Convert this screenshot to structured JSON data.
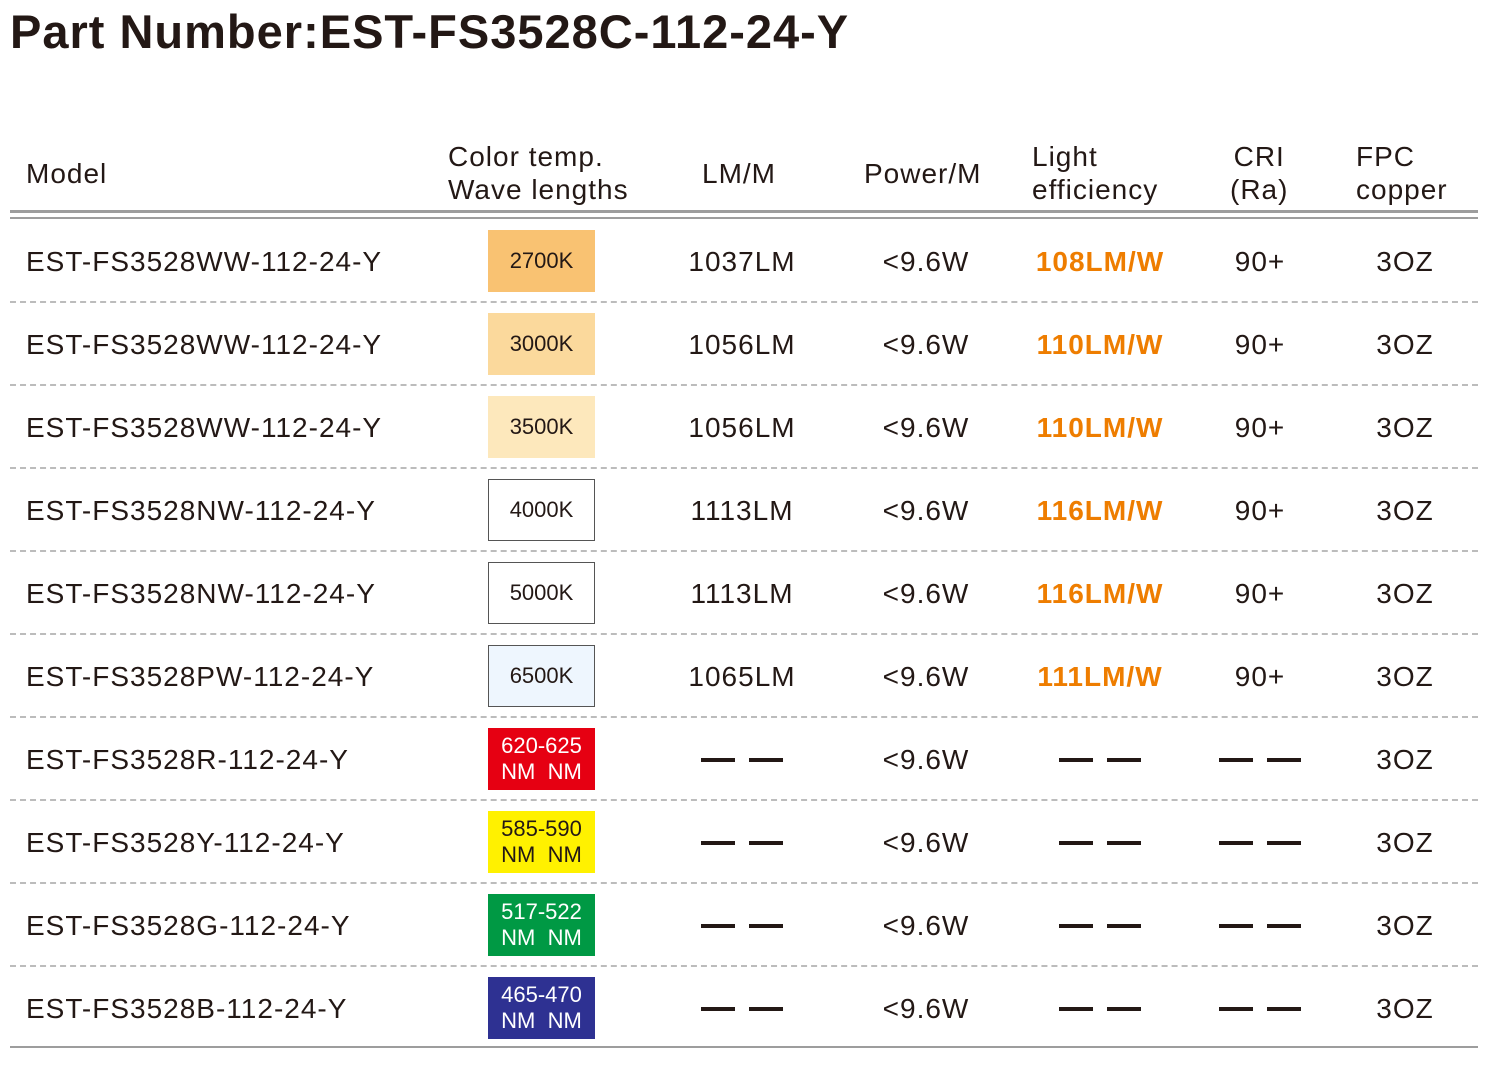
{
  "title": "Part Number:EST-FS3528C-112-24-Y",
  "headers": {
    "model": "Model",
    "color_line1": "Color temp.",
    "color_line2": "Wave lengths",
    "lm": "LM/M",
    "power": "Power/M",
    "eff_line1": "Light",
    "eff_line2": "efficiency",
    "cri_line1": "CRI",
    "cri_line2": "(Ra)",
    "fpc_line1": "FPC",
    "fpc_line2": "copper"
  },
  "rows": [
    {
      "model": "EST-FS3528WW-112-24-Y",
      "swatch_line1": "2700K",
      "swatch_line2": "",
      "swatch_bg": "#f9c272",
      "swatch_fg": "#231815",
      "lm": "1037LM",
      "power": "<9.6W",
      "eff": "108LM/W",
      "cri": "90+",
      "fpc": "3OZ"
    },
    {
      "model": "EST-FS3528WW-112-24-Y",
      "swatch_line1": "3000K",
      "swatch_line2": "",
      "swatch_bg": "#fbd99c",
      "swatch_fg": "#231815",
      "lm": "1056LM",
      "power": "<9.6W",
      "eff": "110LM/W",
      "cri": "90+",
      "fpc": "3OZ"
    },
    {
      "model": "EST-FS3528WW-112-24-Y",
      "swatch_line1": "3500K",
      "swatch_line2": "",
      "swatch_bg": "#fde8bc",
      "swatch_fg": "#231815",
      "lm": "1056LM",
      "power": "<9.6W",
      "eff": "110LM/W",
      "cri": "90+",
      "fpc": "3OZ"
    },
    {
      "model": "EST-FS3528NW-112-24-Y",
      "swatch_line1": "4000K",
      "swatch_line2": "",
      "swatch_bg": "#ffffff",
      "swatch_fg": "#231815",
      "lm": "1113LM",
      "power": "<9.6W",
      "eff": "116LM/W",
      "cri": "90+",
      "fpc": "3OZ"
    },
    {
      "model": "EST-FS3528NW-112-24-Y",
      "swatch_line1": "5000K",
      "swatch_line2": "",
      "swatch_bg": "#ffffff",
      "swatch_fg": "#231815",
      "lm": "1113LM",
      "power": "<9.6W",
      "eff": "116LM/W",
      "cri": "90+",
      "fpc": "3OZ"
    },
    {
      "model": "EST-FS3528PW-112-24-Y",
      "swatch_line1": "6500K",
      "swatch_line2": "",
      "swatch_bg": "#eef6fe",
      "swatch_fg": "#231815",
      "lm": "1065LM",
      "power": "<9.6W",
      "eff": "111LM/W",
      "cri": "90+",
      "fpc": "3OZ"
    },
    {
      "model": "EST-FS3528R-112-24-Y",
      "swatch_line1": "620-625",
      "swatch_line2": "NM  NM",
      "swatch_bg": "#e60012",
      "swatch_fg": "#ffffff",
      "lm": "",
      "power": "<9.6W",
      "eff": "",
      "cri": "",
      "fpc": "3OZ"
    },
    {
      "model": "EST-FS3528Y-112-24-Y",
      "swatch_line1": "585-590",
      "swatch_line2": "NM  NM",
      "swatch_bg": "#fff100",
      "swatch_fg": "#231815",
      "lm": "",
      "power": "<9.6W",
      "eff": "",
      "cri": "",
      "fpc": "3OZ"
    },
    {
      "model": "EST-FS3528G-112-24-Y",
      "swatch_line1": "517-522",
      "swatch_line2": "NM  NM",
      "swatch_bg": "#009944",
      "swatch_fg": "#ffffff",
      "lm": "",
      "power": "<9.6W",
      "eff": "",
      "cri": "",
      "fpc": "3OZ"
    },
    {
      "model": "EST-FS3528B-112-24-Y",
      "swatch_line1": "465-470",
      "swatch_line2": "NM  NM",
      "swatch_bg": "#2e3192",
      "swatch_fg": "#ffffff",
      "lm": "",
      "power": "<9.6W",
      "eff": "",
      "cri": "",
      "fpc": "3OZ"
    }
  ]
}
